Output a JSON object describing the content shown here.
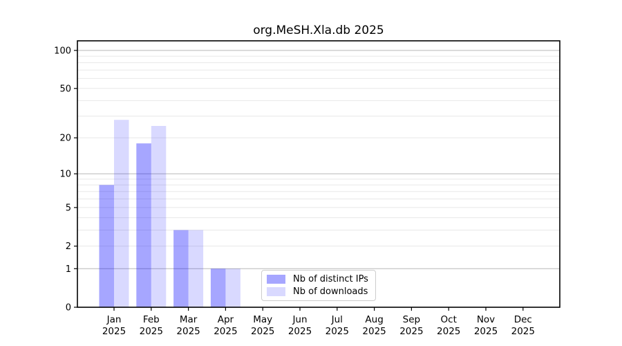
{
  "chart_data": {
    "type": "bar",
    "title": "org.MeSH.Xla.db 2025",
    "x_tick_months": [
      "Jan",
      "Feb",
      "Mar",
      "Apr",
      "May",
      "Jun",
      "Jul",
      "Aug",
      "Sep",
      "Oct",
      "Nov",
      "Dec"
    ],
    "x_tick_year": "2025",
    "series": [
      {
        "name": "Nb of distinct IPs",
        "color": "#0000ff",
        "fill_opacity": 0.35,
        "rendered_color": "#a6a6ff",
        "values": [
          8,
          18,
          3,
          1,
          0,
          0,
          0,
          0,
          0,
          0,
          0,
          0
        ]
      },
      {
        "name": "Nb of downloads",
        "color": "#0000ff",
        "fill_opacity": 0.15,
        "rendered_color": "#d9d9ff",
        "values": [
          28,
          25,
          3,
          1,
          0,
          0,
          0,
          0,
          0,
          0,
          0,
          0
        ]
      }
    ],
    "yscale": "log1p",
    "ylim": [
      0,
      119
    ],
    "ytick_labels": [
      0,
      1,
      2,
      5,
      10,
      20,
      50,
      100
    ],
    "major_gridlines": [
      1,
      10,
      100
    ],
    "minor_gridlines": [
      2,
      3,
      4,
      5,
      6,
      7,
      8,
      9,
      20,
      30,
      40,
      50,
      60,
      70,
      80,
      90
    ],
    "grid": true,
    "legend_position": "lower-center-inside",
    "colors": {
      "major_grid": "#b8b8b8",
      "minor_grid": "#e8e8e8",
      "axis": "#000000",
      "background": "#ffffff"
    }
  }
}
